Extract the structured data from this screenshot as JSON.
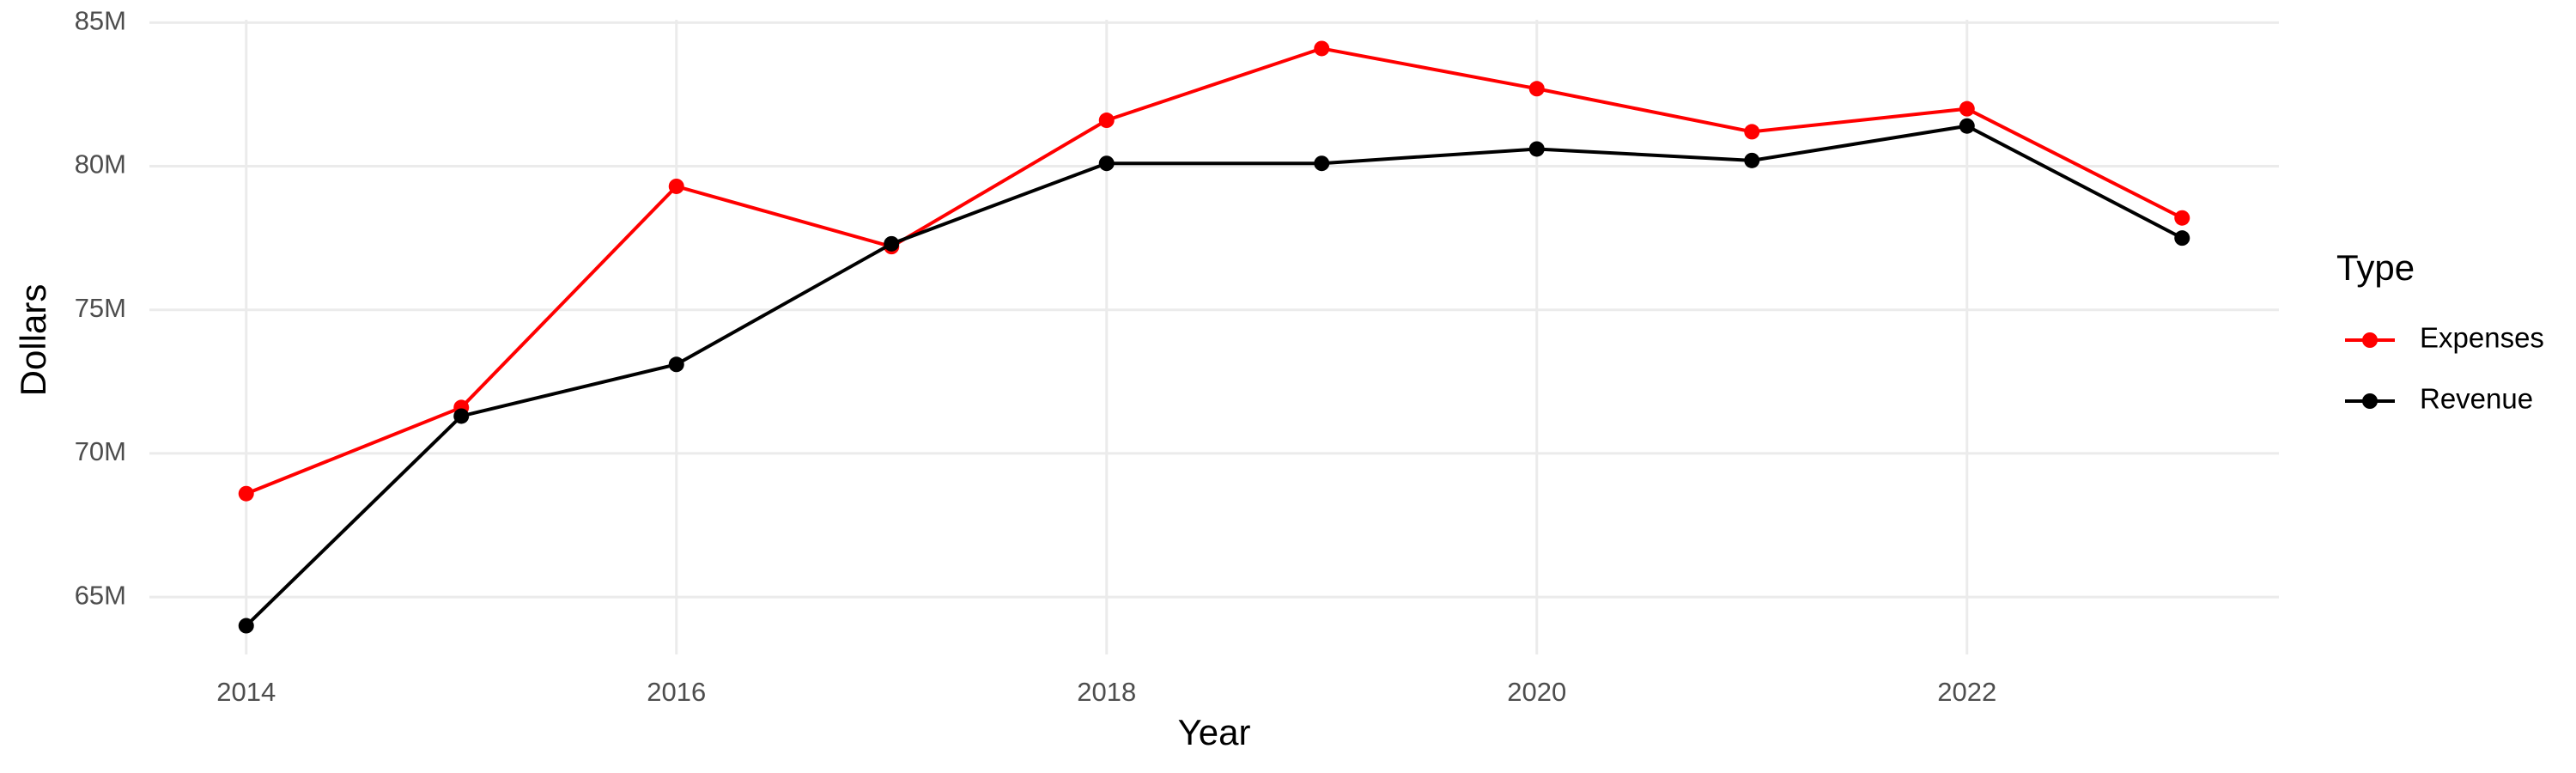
{
  "chart_data": {
    "type": "line",
    "x_label": "Year",
    "y_label": "Dollars",
    "legend_title": "Type",
    "x": [
      2014,
      2015,
      2016,
      2017,
      2018,
      2019,
      2020,
      2021,
      2022,
      2023
    ],
    "series": [
      {
        "name": "Expenses",
        "color": "#ff0000",
        "values": [
          68600000,
          71600000,
          79300000,
          77200000,
          81600000,
          84100000,
          82700000,
          81200000,
          82000000,
          78200000
        ]
      },
      {
        "name": "Revenue",
        "color": "#000000",
        "values": [
          64000000,
          71300000,
          73100000,
          77300000,
          80100000,
          80100000,
          80600000,
          80200000,
          81400000,
          77500000
        ]
      }
    ],
    "xlim": [
      2013.55,
      2023.45
    ],
    "xticks": [
      2014,
      2016,
      2018,
      2020,
      2022
    ],
    "ylim": [
      63000000,
      85100000
    ],
    "yticks": [
      {
        "value": 65000000,
        "label": "65M"
      },
      {
        "value": 70000000,
        "label": "70M"
      },
      {
        "value": 75000000,
        "label": "75M"
      },
      {
        "value": 80000000,
        "label": "80M"
      },
      {
        "value": 85000000,
        "label": "85M"
      }
    ],
    "grid": true,
    "legend": "right"
  }
}
